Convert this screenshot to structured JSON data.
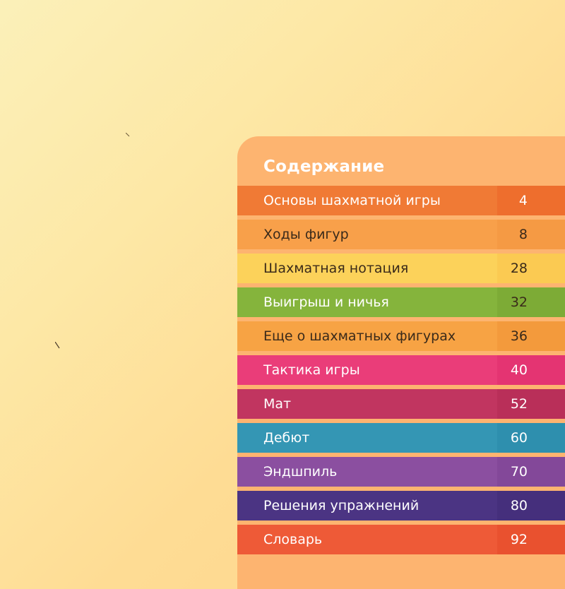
{
  "toc": {
    "title": "Содержание",
    "items": [
      {
        "label": "Основы шахматной игры",
        "page": "4",
        "color": "#f07a35",
        "num_color": "#ee6e2d",
        "text_color": "#ffffff",
        "num_text_color": "#ffffff"
      },
      {
        "label": "Ходы фигур",
        "page": "8",
        "color": "#f8a04a",
        "num_color": "#f59a44",
        "text_color": "#3a2a1a",
        "num_text_color": "#3a2a1a"
      },
      {
        "label": "Шахматная нотация",
        "page": "28",
        "color": "#fcd25a",
        "num_color": "#fbca52",
        "text_color": "#3a2a1a",
        "num_text_color": "#3a2a1a"
      },
      {
        "label": "Выигрыш и ничья",
        "page": "32",
        "color": "#85b43c",
        "num_color": "#7dab36",
        "text_color": "#ffffff",
        "num_text_color": "#3a2a1a"
      },
      {
        "label": "Еще о шахматных фигурах",
        "page": "36",
        "color": "#f7a344",
        "num_color": "#f39a3c",
        "text_color": "#3a2a1a",
        "num_text_color": "#3a2a1a"
      },
      {
        "label": "Тактика игры",
        "page": "40",
        "color": "#ea3d79",
        "num_color": "#e43472",
        "text_color": "#ffffff",
        "num_text_color": "#ffffff"
      },
      {
        "label": "Мат",
        "page": "52",
        "color": "#c13560",
        "num_color": "#b92f59",
        "text_color": "#ffffff",
        "num_text_color": "#ffffff"
      },
      {
        "label": "Дебют",
        "page": "60",
        "color": "#3496b4",
        "num_color": "#2e8fae",
        "text_color": "#ffffff",
        "num_text_color": "#ffffff"
      },
      {
        "label": "Эндшпиль",
        "page": "70",
        "color": "#8b4fa0",
        "num_color": "#834899",
        "text_color": "#ffffff",
        "num_text_color": "#ffffff"
      },
      {
        "label": "Решения упражнений",
        "page": "80",
        "color": "#4b3483",
        "num_color": "#452f7c",
        "text_color": "#ffffff",
        "num_text_color": "#ffffff"
      },
      {
        "label": "Словарь",
        "page": "92",
        "color": "#ee5a37",
        "num_color": "#e9512f",
        "text_color": "#ffffff",
        "num_text_color": "#ffffff"
      }
    ]
  }
}
